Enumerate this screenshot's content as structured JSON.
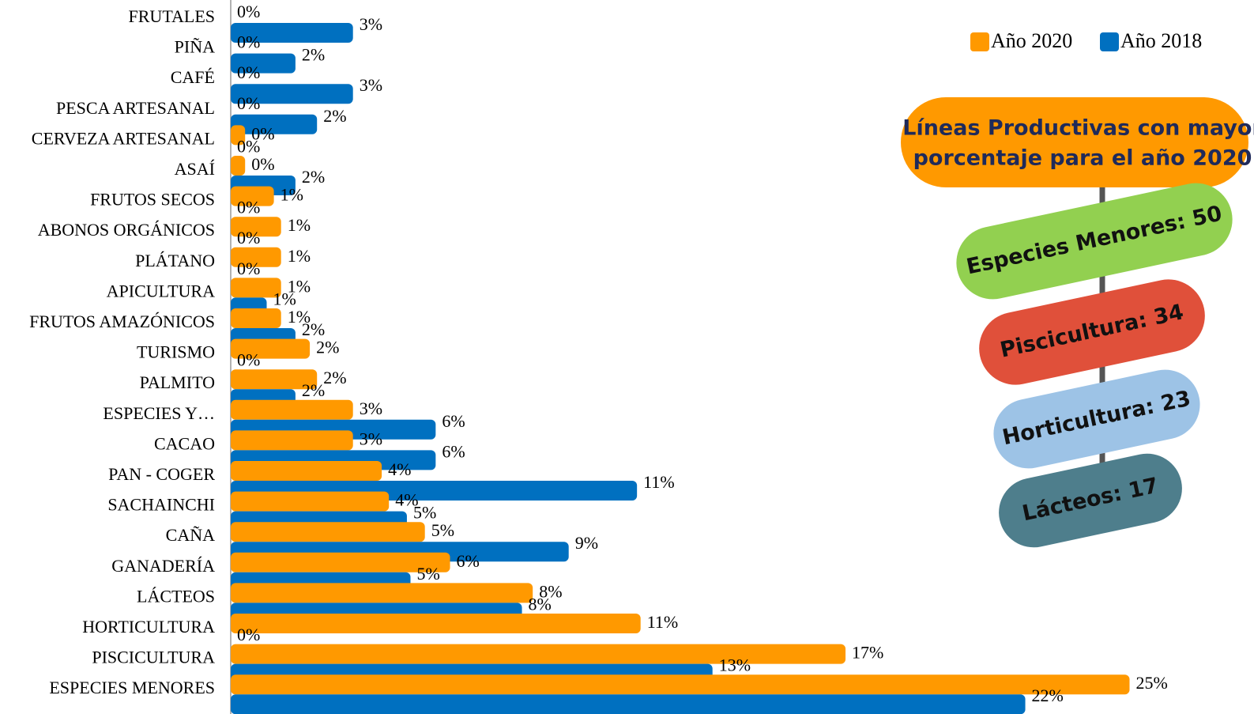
{
  "chart_data": {
    "type": "hbar",
    "categories": [
      "FRUTALES",
      "PIÑA",
      "CAFÉ",
      "PESCA ARTESANAL",
      "CERVEZA ARTESANAL",
      "ASAÍ",
      "FRUTOS SECOS",
      "ABONOS ORGÁNICOS",
      "PLÁTANO",
      "APICULTURA",
      "FRUTOS AMAZÓNICOS",
      "TURISMO",
      "PALMITO",
      "ESPECIES Y…",
      "CACAO",
      "PAN - COGER",
      "SACHAINCHI",
      "CAÑA",
      "GANADERÍA",
      "LÁCTEOS",
      "HORTICULTURA",
      "PISCICULTURA",
      "ESPECIES MENORES"
    ],
    "series": [
      {
        "name": "Año 2020",
        "color": "#ff9900",
        "values": [
          0,
          0,
          0,
          0,
          0.4,
          0.4,
          1.2,
          1.4,
          1.4,
          1.4,
          1.4,
          2.2,
          2.4,
          3.4,
          3.4,
          4.2,
          4.4,
          5.4,
          6.1,
          8.4,
          11.4,
          17.1,
          25.0
        ],
        "value_labels": [
          "0%",
          "0%",
          "0%",
          "0%",
          "0%",
          "0%",
          "1%",
          "1%",
          "1%",
          "1%",
          "1%",
          "2%",
          "2%",
          "3%",
          "3%",
          "4%",
          "4%",
          "5%",
          "6%",
          "8%",
          "11%",
          "17%",
          "25%"
        ]
      },
      {
        "name": "Año 2018",
        "color": "#0070c0",
        "values": [
          3.4,
          1.8,
          3.4,
          2.4,
          0,
          1.8,
          0,
          0,
          0,
          1.0,
          1.8,
          0,
          1.8,
          5.7,
          5.7,
          11.3,
          4.9,
          9.4,
          5.0,
          8.1,
          0,
          13.4,
          22.1
        ],
        "value_labels": [
          "3%",
          "2%",
          "3%",
          "2%",
          "0%",
          "2%",
          "0%",
          "0%",
          "0%",
          "1%",
          "2%",
          "0%",
          "2%",
          "6%",
          "6%",
          "11%",
          "5%",
          "9%",
          "5%",
          "8%",
          "0%",
          "13%",
          "22%"
        ]
      }
    ],
    "xlim": [
      0,
      27.5
    ],
    "legend": "upper right",
    "infographic": {
      "title_lines": [
        "Líneas Productivas con mayor",
        "porcentaje  para el año 2020"
      ],
      "items": [
        {
          "text": "Especies Menores: 50",
          "color": "#92d050"
        },
        {
          "text": "Piscicultura: 34",
          "color": "#e0503a"
        },
        {
          "text": "Horticultura: 23",
          "color": "#9dc3e6"
        },
        {
          "text": "Lácteos: 17",
          "color": "#4e7e8c"
        }
      ]
    }
  }
}
